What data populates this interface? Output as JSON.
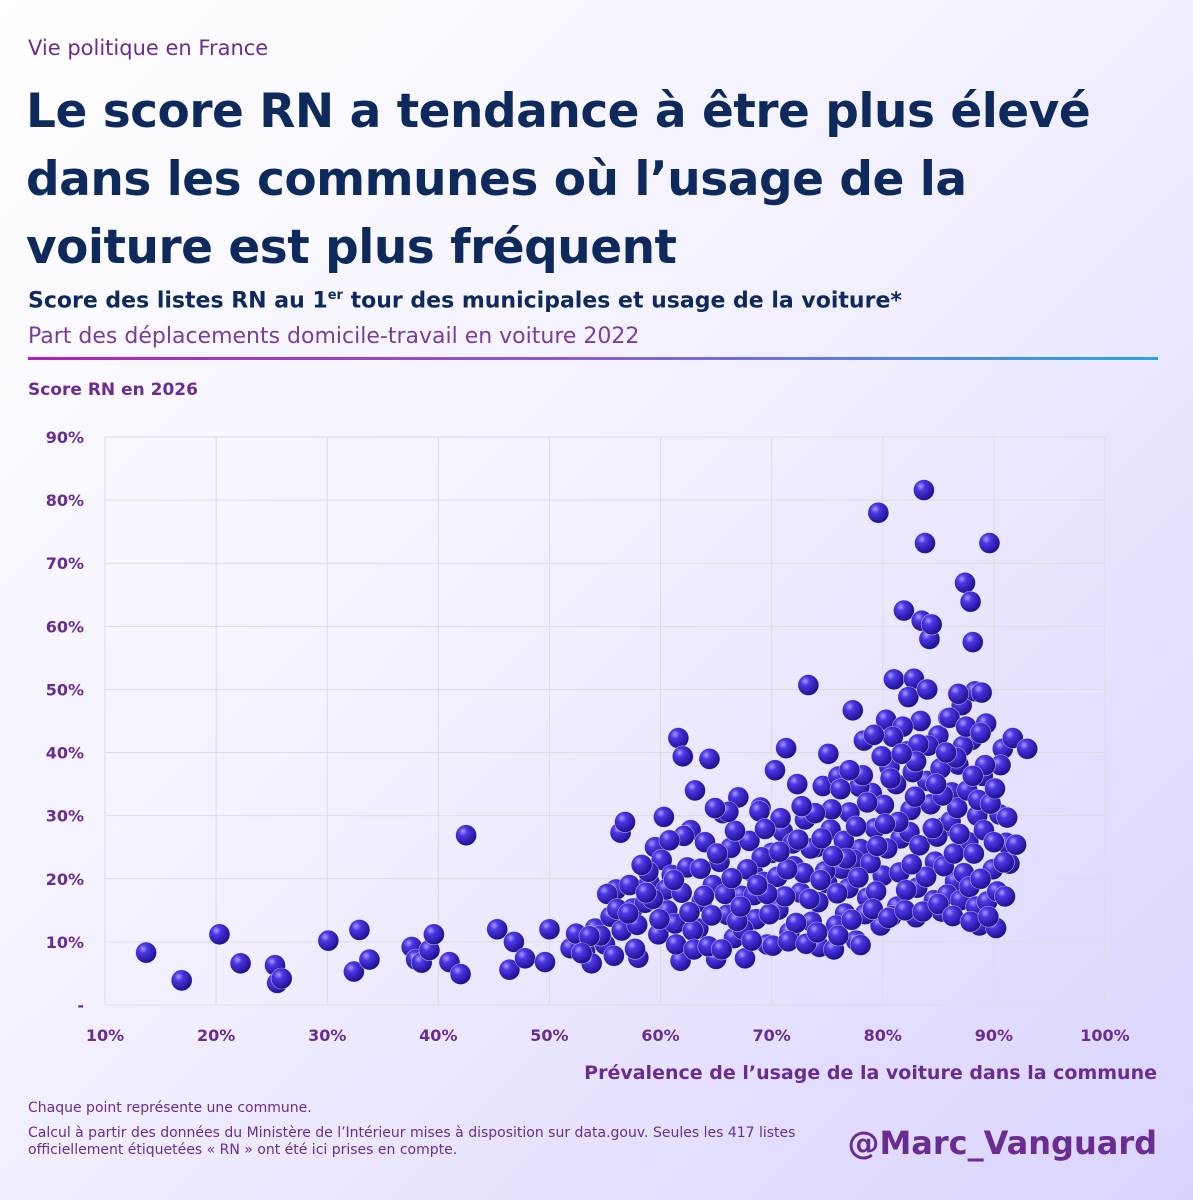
{
  "header": {
    "kicker": "Vie politique en France",
    "title": "Le score RN a tendance à être plus élevé dans les communes où l’usage de la voiture est plus fréquent",
    "subtitle_before": "Score des listes RN au 1",
    "subtitle_sup": "er",
    "subtitle_after": " tour des municipales et usage de la voiture*",
    "subtitle2": "Part des déplacements domicile-travail en voiture 2022"
  },
  "footer": {
    "note1": "Chaque point représente une commune.",
    "note2": "Calcul à partir des données du Ministère de l’Intérieur mises à disposition sur data.gouv. Seules les 417 listes officiellement étiquetées « RN » ont été ici prises en compte.",
    "handle": "@Marc_Vanguard"
  },
  "chart_data": {
    "type": "scatter",
    "xlabel": "Prévalence de l’usage de la voiture dans la commune",
    "ylabel": "Score RN en 2026",
    "xlim": [
      10,
      100
    ],
    "ylim": [
      0,
      90
    ],
    "x_ticks": [
      "10%",
      "20%",
      "30%",
      "40%",
      "50%",
      "60%",
      "70%",
      "80%",
      "90%",
      "100%"
    ],
    "y_ticks": [
      "-",
      "10%",
      "20%",
      "30%",
      "40%",
      "50%",
      "60%",
      "70%",
      "80%",
      "90%"
    ],
    "grid": true,
    "colors": {
      "point": "#3a1fd6",
      "grid": "#dddddd",
      "axis_text": "#6a2c91"
    },
    "points": [
      [
        13.7,
        8.3
      ],
      [
        16.9,
        3.9
      ],
      [
        20.3,
        11.2
      ],
      [
        22.2,
        6.6
      ],
      [
        25.3,
        6.3
      ],
      [
        25.5,
        3.5
      ],
      [
        25.9,
        4.2
      ],
      [
        30.1,
        10.2
      ],
      [
        32.4,
        5.3
      ],
      [
        32.9,
        11.9
      ],
      [
        33.8,
        7.2
      ],
      [
        37.6,
        9.2
      ],
      [
        38.0,
        7.2
      ],
      [
        38.5,
        6.7
      ],
      [
        39.2,
        8.7
      ],
      [
        39.6,
        11.2
      ],
      [
        41.0,
        6.8
      ],
      [
        42.0,
        4.9
      ],
      [
        42.5,
        26.9
      ],
      [
        45.3,
        12.0
      ],
      [
        46.4,
        5.6
      ],
      [
        46.8,
        10.0
      ],
      [
        47.8,
        7.4
      ],
      [
        49.6,
        6.8
      ],
      [
        50.0,
        12.0
      ],
      [
        51.9,
        9.0
      ],
      [
        52.4,
        11.3
      ],
      [
        53.2,
        8.5
      ],
      [
        53.8,
        6.6
      ],
      [
        54.1,
        12.1
      ],
      [
        55.0,
        9.6
      ],
      [
        55.5,
        14.0
      ],
      [
        56.0,
        18.3
      ],
      [
        56.4,
        27.3
      ],
      [
        56.8,
        29.0
      ],
      [
        57.2,
        19.0
      ],
      [
        57.5,
        15.3
      ],
      [
        58.0,
        7.5
      ],
      [
        58.6,
        16.2
      ],
      [
        59.0,
        19.4
      ],
      [
        59.5,
        25.0
      ],
      [
        59.8,
        11.2
      ],
      [
        60.1,
        23.0
      ],
      [
        60.3,
        29.8
      ],
      [
        60.6,
        15.0
      ],
      [
        61.0,
        20.6
      ],
      [
        61.3,
        12.9
      ],
      [
        61.6,
        42.3
      ],
      [
        61.8,
        7.0
      ],
      [
        62.0,
        39.4
      ],
      [
        62.4,
        21.8
      ],
      [
        62.7,
        27.7
      ],
      [
        63.1,
        34.0
      ],
      [
        63.4,
        12.1
      ],
      [
        63.7,
        16.4
      ],
      [
        64.0,
        25.8
      ],
      [
        64.4,
        39.0
      ],
      [
        64.7,
        19.0
      ],
      [
        65.0,
        7.3
      ],
      [
        65.3,
        22.7
      ],
      [
        65.6,
        30.4
      ],
      [
        66.0,
        14.3
      ],
      [
        66.3,
        24.9
      ],
      [
        66.6,
        10.6
      ],
      [
        67.0,
        32.9
      ],
      [
        67.3,
        17.3
      ],
      [
        67.6,
        7.4
      ],
      [
        68.0,
        26.0
      ],
      [
        68.3,
        21.0
      ],
      [
        68.6,
        13.6
      ],
      [
        69.0,
        31.3
      ],
      [
        69.3,
        19.5
      ],
      [
        69.6,
        9.6
      ],
      [
        70.0,
        24.1
      ],
      [
        70.3,
        37.2
      ],
      [
        70.6,
        15.1
      ],
      [
        71.0,
        27.5
      ],
      [
        71.3,
        40.7
      ],
      [
        71.6,
        11.5
      ],
      [
        72.0,
        22.0
      ],
      [
        72.3,
        35.0
      ],
      [
        72.6,
        17.8
      ],
      [
        73.0,
        29.4
      ],
      [
        73.3,
        50.7
      ],
      [
        73.6,
        13.2
      ],
      [
        74.0,
        25.0
      ],
      [
        74.3,
        9.2
      ],
      [
        74.6,
        34.7
      ],
      [
        75.0,
        19.3
      ],
      [
        75.3,
        27.8
      ],
      [
        75.6,
        8.8
      ],
      [
        76.0,
        36.2
      ],
      [
        76.3,
        21.6
      ],
      [
        76.6,
        14.5
      ],
      [
        77.0,
        30.5
      ],
      [
        77.3,
        46.7
      ],
      [
        77.6,
        10.2
      ],
      [
        78.0,
        24.7
      ],
      [
        78.3,
        41.9
      ],
      [
        78.6,
        17.0
      ],
      [
        79.0,
        33.6
      ],
      [
        79.3,
        28.0
      ],
      [
        79.6,
        78.0
      ],
      [
        79.8,
        12.6
      ],
      [
        80.0,
        20.5
      ],
      [
        80.3,
        45.2
      ],
      [
        80.6,
        37.7
      ],
      [
        81.0,
        51.6
      ],
      [
        81.3,
        15.6
      ],
      [
        81.6,
        26.4
      ],
      [
        81.9,
        62.5
      ],
      [
        82.2,
        40.2
      ],
      [
        82.5,
        30.9
      ],
      [
        82.8,
        51.7
      ],
      [
        83.1,
        18.6
      ],
      [
        83.4,
        45.0
      ],
      [
        83.5,
        60.9
      ],
      [
        83.7,
        81.6
      ],
      [
        83.8,
        73.2
      ],
      [
        84.0,
        35.5
      ],
      [
        84.2,
        58.0
      ],
      [
        84.4,
        60.3
      ],
      [
        84.7,
        22.7
      ],
      [
        85.0,
        42.7
      ],
      [
        85.3,
        14.8
      ],
      [
        85.6,
        28.3
      ],
      [
        85.9,
        45.5
      ],
      [
        86.2,
        33.7
      ],
      [
        86.5,
        19.6
      ],
      [
        86.8,
        38.1
      ],
      [
        87.1,
        47.5
      ],
      [
        87.4,
        66.9
      ],
      [
        87.7,
        25.8
      ],
      [
        87.9,
        63.9
      ],
      [
        88.1,
        57.5
      ],
      [
        88.3,
        49.7
      ],
      [
        88.5,
        30.0
      ],
      [
        88.7,
        12.6
      ],
      [
        89.0,
        36.3
      ],
      [
        89.3,
        44.6
      ],
      [
        89.6,
        73.2
      ],
      [
        89.9,
        21.5
      ],
      [
        90.2,
        12.2
      ],
      [
        90.5,
        30.2
      ],
      [
        90.8,
        40.6
      ],
      [
        91.1,
        25.7
      ],
      [
        91.4,
        22.4
      ],
      [
        91.7,
        42.3
      ],
      [
        92.0,
        25.4
      ],
      [
        93.0,
        40.6
      ],
      [
        55.2,
        17.6
      ],
      [
        56.5,
        11.8
      ],
      [
        57.9,
        12.7
      ],
      [
        58.9,
        21.1
      ],
      [
        60.5,
        18.3
      ],
      [
        61.9,
        17.8
      ],
      [
        62.9,
        11.8
      ],
      [
        63.6,
        21.6
      ],
      [
        64.6,
        14.2
      ],
      [
        65.8,
        17.6
      ],
      [
        66.7,
        27.6
      ],
      [
        67.4,
        12.0
      ],
      [
        68.4,
        17.4
      ],
      [
        69.1,
        23.4
      ],
      [
        69.8,
        14.4
      ],
      [
        70.5,
        20.3
      ],
      [
        71.2,
        17.2
      ],
      [
        71.9,
        25.6
      ],
      [
        72.2,
        13.0
      ],
      [
        72.9,
        20.9
      ],
      [
        73.5,
        24.8
      ],
      [
        74.2,
        16.3
      ],
      [
        74.8,
        21.2
      ],
      [
        75.4,
        31.0
      ],
      [
        75.8,
        12.6
      ],
      [
        76.5,
        26.0
      ],
      [
        76.9,
        18.5
      ],
      [
        77.4,
        23.0
      ],
      [
        77.9,
        34.6
      ],
      [
        78.4,
        14.4
      ],
      [
        78.9,
        22.5
      ],
      [
        79.4,
        18.0
      ],
      [
        80.1,
        31.7
      ],
      [
        80.4,
        24.8
      ],
      [
        80.8,
        14.1
      ],
      [
        81.2,
        35.0
      ],
      [
        81.5,
        21.0
      ],
      [
        81.8,
        44.1
      ],
      [
        82.1,
        18.2
      ],
      [
        82.4,
        27.4
      ],
      [
        82.7,
        36.9
      ],
      [
        83.0,
        13.9
      ],
      [
        83.3,
        25.3
      ],
      [
        83.9,
        20.3
      ],
      [
        84.3,
        31.8
      ],
      [
        84.6,
        16.6
      ],
      [
        84.9,
        26.7
      ],
      [
        85.2,
        37.5
      ],
      [
        85.5,
        22.0
      ],
      [
        85.8,
        17.5
      ],
      [
        86.1,
        29.1
      ],
      [
        86.4,
        24.0
      ],
      [
        86.7,
        31.2
      ],
      [
        87.0,
        16.6
      ],
      [
        87.3,
        20.9
      ],
      [
        87.6,
        34.0
      ],
      [
        87.8,
        18.7
      ],
      [
        88.0,
        42.0
      ],
      [
        88.2,
        24.0
      ],
      [
        88.4,
        15.6
      ],
      [
        88.6,
        32.5
      ],
      [
        88.8,
        20.0
      ],
      [
        89.1,
        27.7
      ],
      [
        89.4,
        16.4
      ],
      [
        89.7,
        31.9
      ],
      [
        90.0,
        25.8
      ],
      [
        90.3,
        18.0
      ],
      [
        90.6,
        38.0
      ],
      [
        78.0,
        9.5
      ],
      [
        80.9,
        42.5
      ],
      [
        84.1,
        41.1
      ],
      [
        86.0,
        45.5
      ],
      [
        88.9,
        49.5
      ],
      [
        82.9,
        33.0
      ],
      [
        79.9,
        39.4
      ],
      [
        77.6,
        28.3
      ],
      [
        76.2,
        34.2
      ],
      [
        75.1,
        39.8
      ],
      [
        73.9,
        30.4
      ],
      [
        72.7,
        31.5
      ],
      [
        74.5,
        26.4
      ],
      [
        68.9,
        30.7
      ],
      [
        70.8,
        29.6
      ],
      [
        69.4,
        27.9
      ],
      [
        67.8,
        21.5
      ],
      [
        66.1,
        30.6
      ],
      [
        64.9,
        31.2
      ],
      [
        62.1,
        26.8
      ],
      [
        58.3,
        22.2
      ],
      [
        60.8,
        26.1
      ],
      [
        57.7,
        8.9
      ],
      [
        59.3,
        16.8
      ],
      [
        61.4,
        9.6
      ],
      [
        63.0,
        8.8
      ],
      [
        64.3,
        9.3
      ],
      [
        65.5,
        8.8
      ],
      [
        66.9,
        13.3
      ],
      [
        68.2,
        10.2
      ],
      [
        70.1,
        9.4
      ],
      [
        71.5,
        10.1
      ],
      [
        73.1,
        9.7
      ],
      [
        74.1,
        11.5
      ],
      [
        76.0,
        11.0
      ],
      [
        77.2,
        13.5
      ],
      [
        79.1,
        15.2
      ],
      [
        80.5,
        13.8
      ],
      [
        82.0,
        15.0
      ],
      [
        83.6,
        14.8
      ],
      [
        85.0,
        16.0
      ],
      [
        86.3,
        14.1
      ],
      [
        87.9,
        13.2
      ],
      [
        89.5,
        14.0
      ],
      [
        91.0,
        17.2
      ],
      [
        90.9,
        22.6
      ],
      [
        91.2,
        29.7
      ],
      [
        90.1,
        34.3
      ],
      [
        89.2,
        38.0
      ],
      [
        88.1,
        36.3
      ],
      [
        87.2,
        41.0
      ],
      [
        86.9,
        27.1
      ],
      [
        85.4,
        33.2
      ],
      [
        84.5,
        28.0
      ],
      [
        83.2,
        41.3
      ],
      [
        82.6,
        22.3
      ],
      [
        81.4,
        29.0
      ],
      [
        80.2,
        28.7
      ],
      [
        79.5,
        25.2
      ],
      [
        78.6,
        32.1
      ],
      [
        77.8,
        20.2
      ],
      [
        76.7,
        23.2
      ],
      [
        75.9,
        17.7
      ],
      [
        75.5,
        23.6
      ],
      [
        74.4,
        19.8
      ],
      [
        73.4,
        16.8
      ],
      [
        72.4,
        26.2
      ],
      [
        71.4,
        21.5
      ],
      [
        70.7,
        24.3
      ],
      [
        69.6,
        17.6
      ],
      [
        68.7,
        19.0
      ],
      [
        67.2,
        15.6
      ],
      [
        66.4,
        20.1
      ],
      [
        65.1,
        24.0
      ],
      [
        63.9,
        17.3
      ],
      [
        62.6,
        14.7
      ],
      [
        61.2,
        19.8
      ],
      [
        59.9,
        13.6
      ],
      [
        58.7,
        17.8
      ],
      [
        56.1,
        15.2
      ],
      [
        54.6,
        11.0
      ],
      [
        53.6,
        10.9
      ],
      [
        52.9,
        8.2
      ],
      [
        55.8,
        7.8
      ],
      [
        57.1,
        14.5
      ],
      [
        84.8,
        35.0
      ],
      [
        86.6,
        39.2
      ],
      [
        83.0,
        38.6
      ],
      [
        81.7,
        39.8
      ],
      [
        80.7,
        35.9
      ],
      [
        79.2,
        42.8
      ],
      [
        78.2,
        36.4
      ],
      [
        77.0,
        37.2
      ],
      [
        82.3,
        48.8
      ],
      [
        85.7,
        40.0
      ],
      [
        87.5,
        44.1
      ],
      [
        88.8,
        43.1
      ],
      [
        86.8,
        49.3
      ],
      [
        84.0,
        50.0
      ]
    ]
  }
}
